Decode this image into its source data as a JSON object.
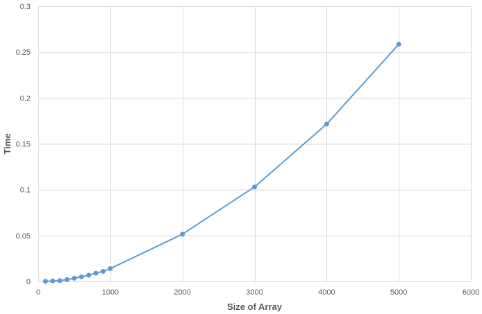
{
  "chart_data": {
    "type": "scatter",
    "title": "",
    "xlabel": "Size of Array",
    "ylabel": "Time",
    "xlim": [
      0,
      6000
    ],
    "ylim": [
      0,
      0.3
    ],
    "x_ticks": [
      0,
      1000,
      2000,
      3000,
      4000,
      5000,
      6000
    ],
    "x_tick_labels": [
      "0",
      "1000",
      "2000",
      "3000",
      "4000",
      "5000",
      "6000"
    ],
    "y_ticks": [
      0,
      0.05,
      0.1,
      0.15,
      0.2,
      0.25,
      0.3
    ],
    "y_tick_labels": [
      "0",
      "0.05",
      "0.1",
      "0.15",
      "0.2",
      "0.25",
      "0.3"
    ],
    "grid": true,
    "legend": "none",
    "series": [
      {
        "color": "#5b9bd5",
        "lines": true,
        "markers": true,
        "x": [
          100,
          200,
          300,
          400,
          500,
          600,
          700,
          800,
          900,
          1000,
          2000,
          3000,
          4000,
          5000
        ],
        "y": [
          0.0001,
          0.0005,
          0.0009,
          0.002,
          0.0035,
          0.005,
          0.0068,
          0.009,
          0.011,
          0.014,
          0.0515,
          0.103,
          0.1715,
          0.2585
        ]
      }
    ]
  }
}
